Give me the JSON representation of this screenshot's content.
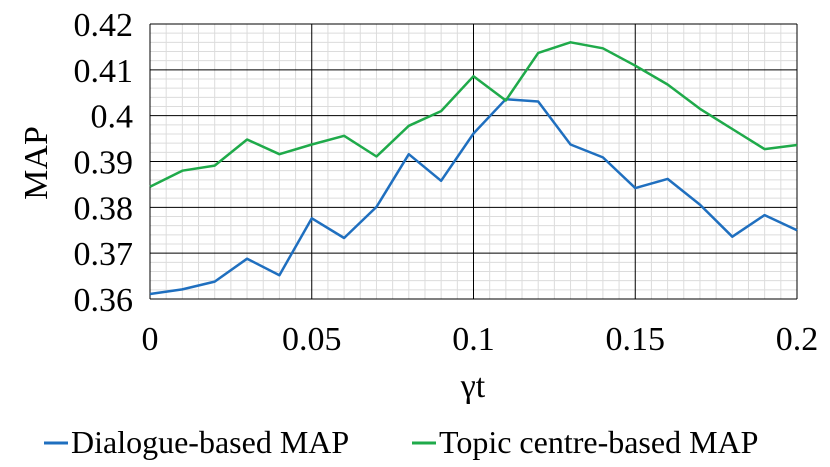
{
  "chart_data": {
    "type": "line",
    "title": "",
    "xlabel": "γt",
    "ylabel": "MAP",
    "xlim": [
      0,
      0.2
    ],
    "ylim": [
      0.36,
      0.42
    ],
    "x_ticks": [
      "0",
      "0.05",
      "0.1",
      "0.15",
      "0.2"
    ],
    "y_ticks": [
      "0.36",
      "0.37",
      "0.38",
      "0.39",
      "0.4",
      "0.41",
      "0.42"
    ],
    "grid": true,
    "legend_position": "bottom",
    "x": [
      0,
      0.01,
      0.02,
      0.03,
      0.04,
      0.05,
      0.06,
      0.07,
      0.08,
      0.09,
      0.1,
      0.11,
      0.12,
      0.13,
      0.14,
      0.15,
      0.16,
      0.17,
      0.18,
      0.19,
      0.2
    ],
    "series": [
      {
        "name": "Dialogue-based MAP",
        "color": "#1f6fbf",
        "values": [
          0.3611,
          0.3621,
          0.3638,
          0.3688,
          0.3652,
          0.3776,
          0.3733,
          0.3801,
          0.3916,
          0.3858,
          0.3961,
          0.4036,
          0.4031,
          0.3937,
          0.3909,
          0.3842,
          0.3862,
          0.3806,
          0.3736,
          0.3783,
          0.375
        ]
      },
      {
        "name": "Topic centre-based MAP",
        "color": "#1faa4a",
        "values": [
          0.3845,
          0.388,
          0.3891,
          0.3948,
          0.3916,
          0.3937,
          0.3956,
          0.3911,
          0.3978,
          0.401,
          0.4086,
          0.4033,
          0.4137,
          0.416,
          0.4147,
          0.4109,
          0.4068,
          0.4015,
          0.3971,
          0.3927,
          0.3936
        ]
      }
    ]
  }
}
